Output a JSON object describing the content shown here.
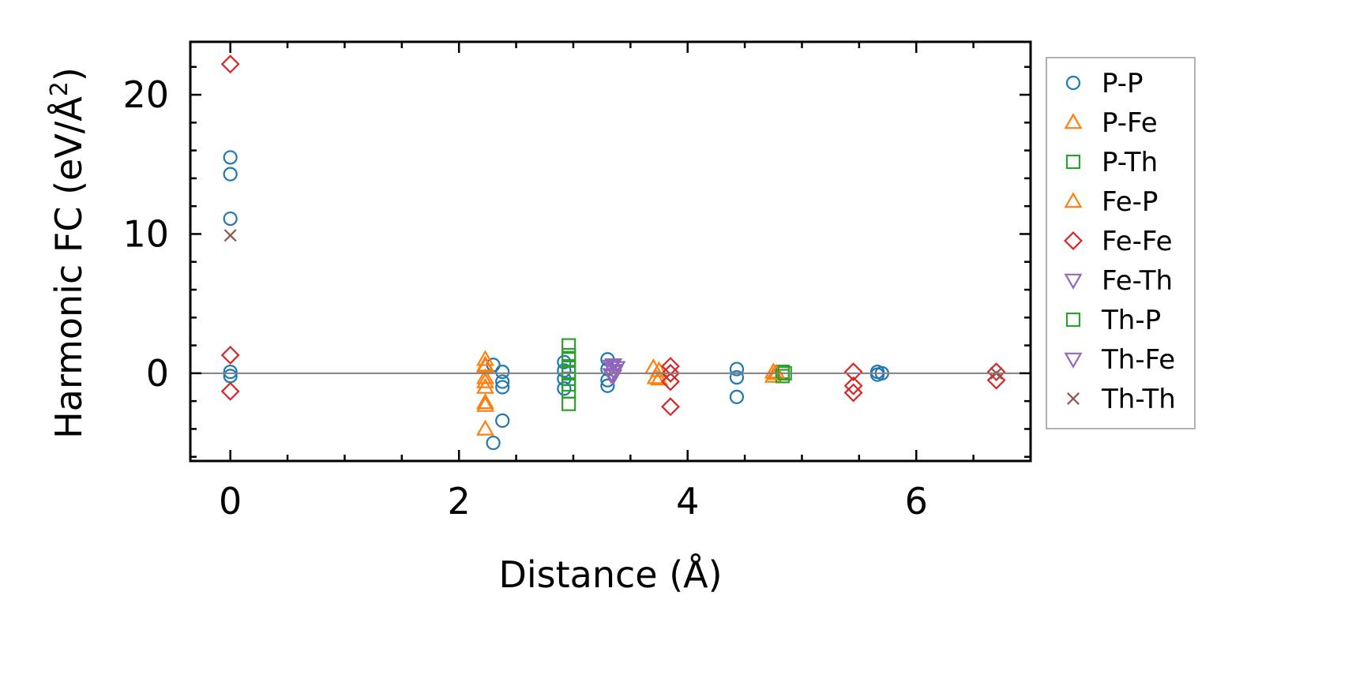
{
  "chart_data": {
    "type": "scatter",
    "xlabel": "Distance (Å)",
    "ylabel": "Harmonic FC (eV/Å²)",
    "ylabel_main": "Harmonic FC (eV/Å",
    "ylabel_sup": "2",
    "ylabel_end": ")",
    "xlim": [
      -0.35,
      7.0
    ],
    "ylim": [
      -6.3,
      23.8
    ],
    "xticks": [
      0,
      2,
      4,
      6
    ],
    "yticks": [
      0,
      10,
      20
    ],
    "grid": false,
    "legend_position": "right",
    "zero_line": true,
    "series": [
      {
        "name": "P-P",
        "marker": "circle",
        "color": "#1f77b4",
        "points": [
          [
            0,
            15.5
          ],
          [
            0,
            14.3
          ],
          [
            0,
            11.1
          ],
          [
            0,
            0.1
          ],
          [
            0,
            -0.2
          ],
          [
            2.3,
            0.6
          ],
          [
            2.3,
            -5.0
          ],
          [
            2.38,
            0.1
          ],
          [
            2.38,
            -0.6
          ],
          [
            2.38,
            -1.0
          ],
          [
            2.38,
            -3.4
          ],
          [
            2.92,
            0.8
          ],
          [
            2.92,
            0.2
          ],
          [
            2.92,
            -0.4
          ],
          [
            2.92,
            -1.1
          ],
          [
            3.3,
            1.0
          ],
          [
            3.3,
            0.3
          ],
          [
            3.3,
            -0.5
          ],
          [
            3.3,
            -0.9
          ],
          [
            4.43,
            0.3
          ],
          [
            4.43,
            -0.3
          ],
          [
            4.43,
            -1.7
          ],
          [
            5.66,
            0.1
          ],
          [
            5.66,
            -0.1
          ],
          [
            5.7,
            0.0
          ]
        ]
      },
      {
        "name": "P-Fe",
        "marker": "triangle-up",
        "color": "#ff7f0e",
        "points": [
          [
            2.23,
            1.0
          ],
          [
            2.23,
            0.5
          ],
          [
            2.23,
            -0.3
          ],
          [
            2.23,
            -1.0
          ],
          [
            2.23,
            -2.1
          ],
          [
            2.23,
            -4.0
          ],
          [
            3.7,
            0.4
          ],
          [
            3.72,
            -0.3
          ],
          [
            4.75,
            0.1
          ],
          [
            4.75,
            -0.2
          ]
        ]
      },
      {
        "name": "P-Th",
        "marker": "square",
        "color": "#2ca02c",
        "points": [
          [
            2.96,
            2.0
          ],
          [
            2.96,
            1.3
          ],
          [
            2.96,
            0.5
          ],
          [
            2.96,
            -0.4
          ],
          [
            2.96,
            -1.3
          ],
          [
            2.96,
            -2.2
          ],
          [
            4.83,
            0.1
          ],
          [
            4.83,
            -0.2
          ]
        ]
      },
      {
        "name": "Fe-P",
        "marker": "triangle-up",
        "color": "#ff7f0e",
        "points": [
          [
            2.23,
            0.6
          ],
          [
            2.23,
            -0.6
          ],
          [
            2.23,
            -2.3
          ],
          [
            3.75,
            0.2
          ],
          [
            3.75,
            -0.4
          ],
          [
            4.78,
            0.0
          ]
        ]
      },
      {
        "name": "Fe-Fe",
        "marker": "diamond",
        "color": "#d62728",
        "points": [
          [
            0,
            22.2
          ],
          [
            0,
            1.3
          ],
          [
            0,
            -1.3
          ],
          [
            3.85,
            0.5
          ],
          [
            3.85,
            0.0
          ],
          [
            3.85,
            -0.6
          ],
          [
            3.85,
            -2.4
          ],
          [
            5.45,
            0.1
          ],
          [
            5.45,
            -0.9
          ],
          [
            5.45,
            -1.4
          ],
          [
            6.7,
            0.1
          ],
          [
            6.7,
            -0.5
          ]
        ]
      },
      {
        "name": "Fe-Th",
        "marker": "triangle-down",
        "color": "#9467bd",
        "points": [
          [
            3.35,
            0.6
          ],
          [
            3.35,
            0.2
          ],
          [
            3.35,
            -0.2
          ],
          [
            3.38,
            0.4
          ]
        ]
      },
      {
        "name": "Th-P",
        "marker": "square",
        "color": "#2ca02c",
        "points": [
          [
            2.96,
            1.0
          ],
          [
            2.96,
            0.0
          ],
          [
            2.96,
            -0.8
          ],
          [
            4.85,
            0.0
          ]
        ]
      },
      {
        "name": "Th-Fe",
        "marker": "triangle-down",
        "color": "#9467bd",
        "points": [
          [
            3.33,
            0.5
          ],
          [
            3.33,
            -0.1
          ],
          [
            3.36,
            0.1
          ]
        ]
      },
      {
        "name": "Th-Th",
        "marker": "x",
        "color": "#8c564b",
        "points": [
          [
            0,
            9.9
          ],
          [
            6.7,
            0.0
          ]
        ]
      }
    ]
  }
}
